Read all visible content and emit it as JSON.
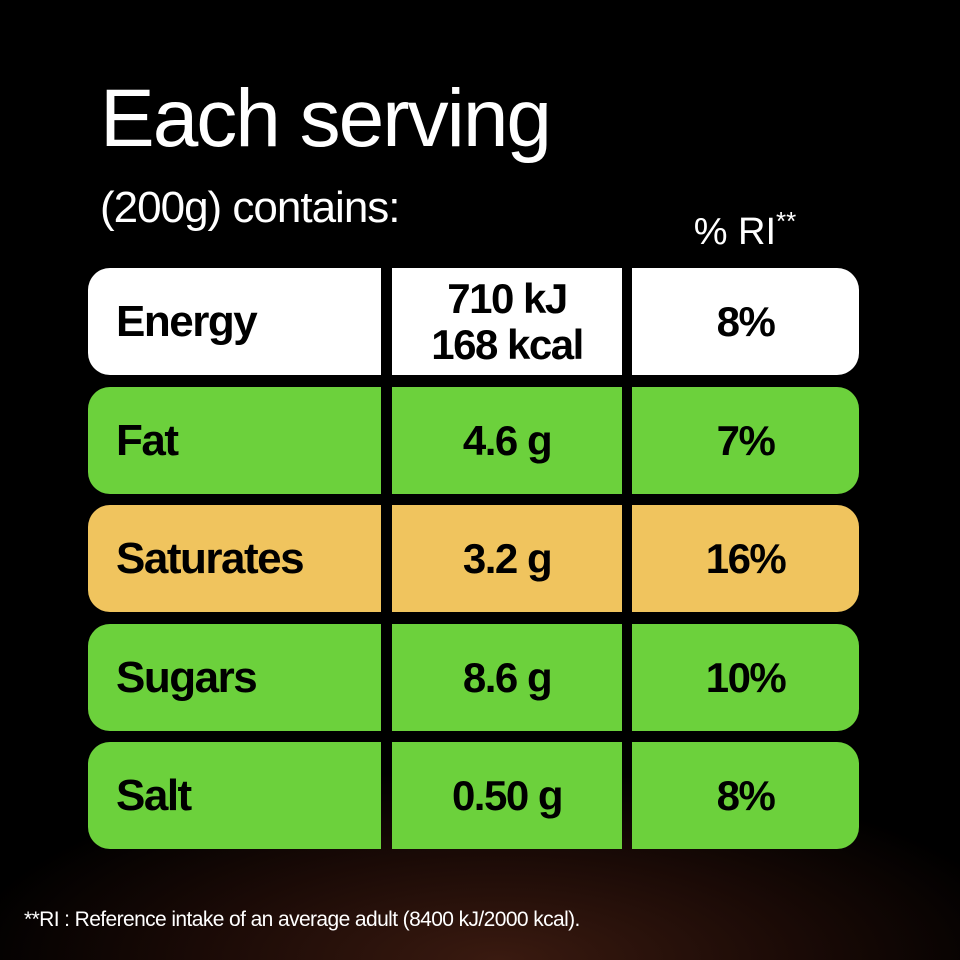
{
  "heading": {
    "title": "Each serving",
    "subtitle": "(200g) contains:",
    "ri_label": "% RI",
    "ri_marker": "**"
  },
  "colors": {
    "white": "#ffffff",
    "green": "#6cd13c",
    "amber": "#f0c45e",
    "background": "#000000"
  },
  "rows": [
    {
      "name": "Energy",
      "amount": "710 kJ",
      "amount_line2": "168 kcal",
      "ri": "8%",
      "color": "#ffffff"
    },
    {
      "name": "Fat",
      "amount": "4.6 g",
      "ri": "7%",
      "color": "#6cd13c"
    },
    {
      "name": "Saturates",
      "amount": "3.2 g",
      "ri": "16%",
      "color": "#f0c45e"
    },
    {
      "name": "Sugars",
      "amount": "8.6 g",
      "ri": "10%",
      "color": "#6cd13c"
    },
    {
      "name": "Salt",
      "amount": "0.50 g",
      "ri": "8%",
      "color": "#6cd13c"
    }
  ],
  "footnote": "**RI : Reference intake of an average adult (8400 kJ/2000 kcal)."
}
